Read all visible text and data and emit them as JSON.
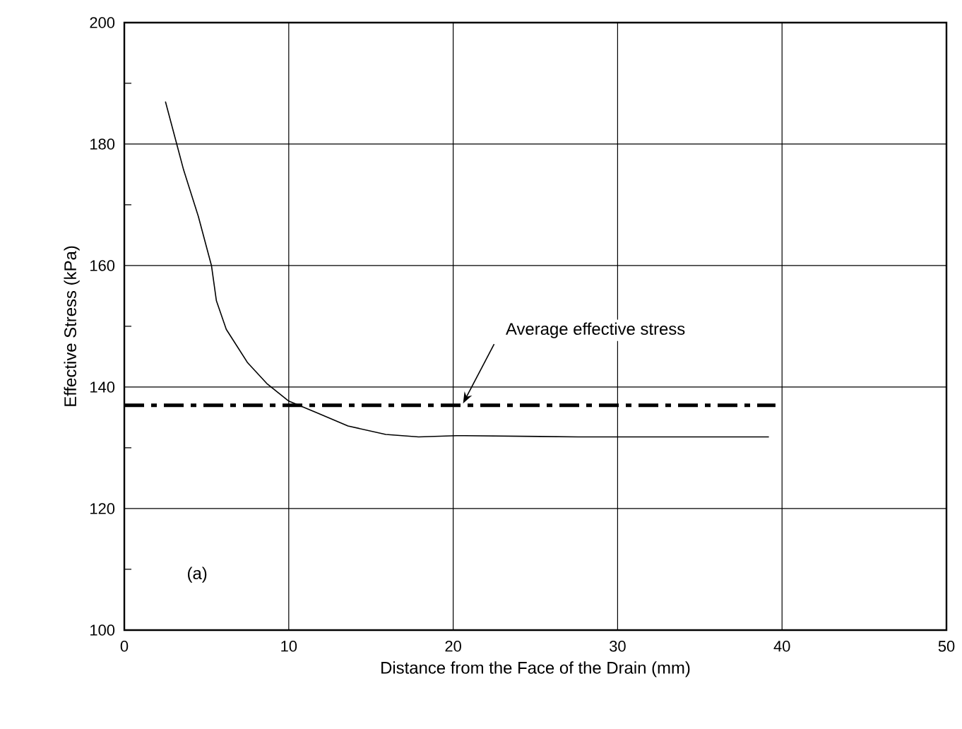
{
  "chart_data": {
    "type": "line",
    "xlabel": "Distance from the Face of the Drain (mm)",
    "ylabel": "Effective Stress (kPa)",
    "xlim": [
      0,
      50
    ],
    "ylim": [
      100,
      200
    ],
    "xticks": [
      0,
      10,
      20,
      30,
      40,
      50
    ],
    "yticks": [
      100,
      120,
      140,
      160,
      180,
      200
    ],
    "grid": true,
    "marker": "none",
    "series": [
      {
        "color": "#000000",
        "line_style": "solid",
        "x": [
          2.5,
          3.6,
          4.5,
          5.3,
          5.6,
          6.2,
          7.5,
          8.7,
          10,
          11.6,
          13.6,
          15.9,
          17.9,
          20.2,
          20.7,
          27.6,
          39.2
        ],
        "values": [
          187,
          175.8,
          168.1,
          160,
          154.2,
          149.5,
          144,
          140.5,
          137.7,
          135.9,
          133.6,
          132.2,
          131.8,
          132,
          132,
          131.8,
          131.8
        ]
      },
      {
        "color": "#000000",
        "line_style": "dashdot",
        "x": [
          0,
          39.6
        ],
        "values": [
          137,
          137
        ]
      }
    ],
    "annotations": [
      {
        "text": "Average effective stress",
        "x": 20.6,
        "y": 137.3
      },
      "(a)"
    ]
  }
}
